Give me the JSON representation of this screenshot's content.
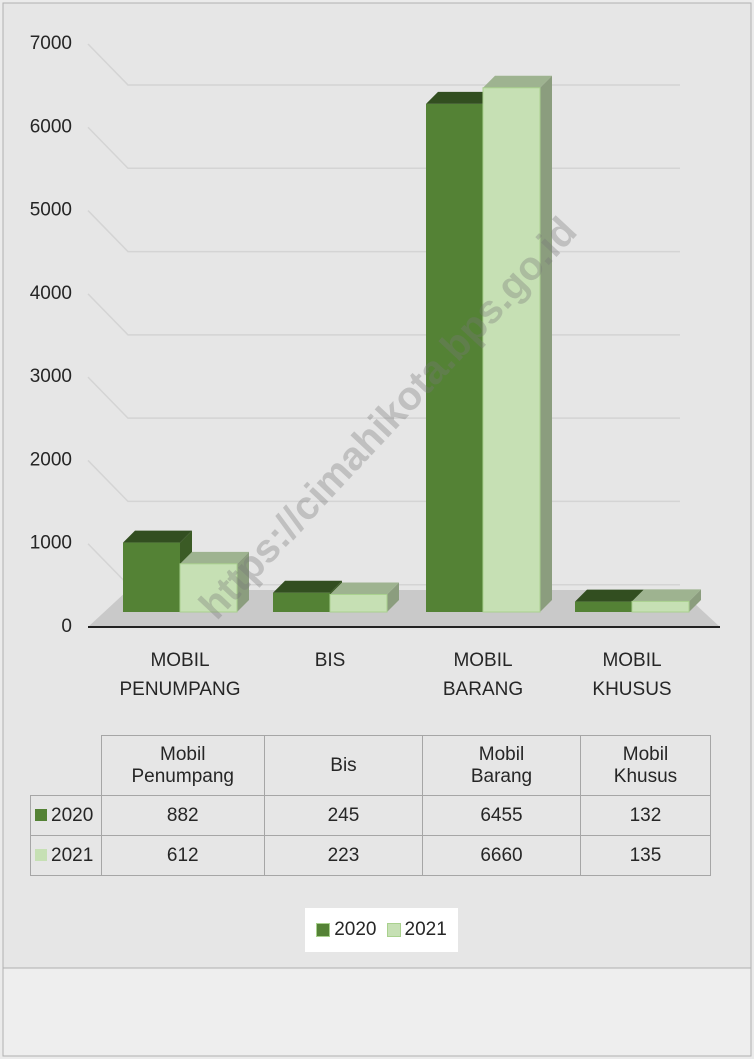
{
  "chart_data": {
    "type": "bar",
    "categories": [
      "MOBIL PENUMPANG",
      "BIS",
      "MOBIL BARANG",
      "MOBIL KHUSUS"
    ],
    "series": [
      {
        "name": "2020",
        "color": "#548235",
        "values": [
          882,
          245,
          6455,
          132
        ]
      },
      {
        "name": "2021",
        "color": "#c6e0b4",
        "values": [
          612,
          223,
          6660,
          135
        ]
      }
    ],
    "ylim": [
      0,
      7000
    ],
    "yticks": [
      0,
      1000,
      2000,
      3000,
      4000,
      5000,
      6000,
      7000
    ],
    "grid": true,
    "table": {
      "headers": [
        "Mobil Penumpang",
        "Bis",
        "Mobil Barang",
        "Mobil Khusus"
      ]
    },
    "legend": "bottom",
    "watermark": "https://cimahikota.bps.go.id"
  }
}
